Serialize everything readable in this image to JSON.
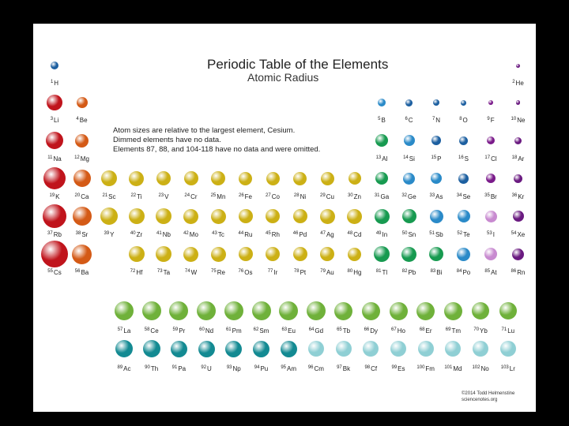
{
  "title": "Periodic Table of the Elements",
  "subtitle": "Atomic Radius",
  "notes": [
    "Atom sizes are relative to the largest element, Cesium.",
    "Dimmed elements have no data.",
    "Elements 87, 88, and 104-118 have no data and were omitted."
  ],
  "credit": [
    "©2014 Todd Helmenstine",
    "sciencenotes.org"
  ],
  "colors": {
    "alkali": "#c0141c",
    "alkaline": "#d45a16",
    "transition": "#ccb015",
    "post_transition": "#179a50",
    "metalloid": "#2a8ac8",
    "nonmetal": "#1c5fa0",
    "halogen": "#7a1a8a",
    "noble": "#6a1a80",
    "lanthanide": "#6fb13a",
    "actinide": "#138a92",
    "actinide_dim": "#8fcfd4",
    "halogen_dim": "#c88ad0"
  },
  "elements": [
    {
      "n": 1,
      "s": "H",
      "c": "nonmetal",
      "r": 5,
      "col": 1,
      "row": 1
    },
    {
      "n": 2,
      "s": "He",
      "c": "noble",
      "r": 2.5,
      "col": 18,
      "row": 1
    },
    {
      "n": 3,
      "s": "Li",
      "c": "alkali",
      "r": 10,
      "col": 1,
      "row": 2
    },
    {
      "n": 4,
      "s": "Be",
      "c": "alkaline",
      "r": 7,
      "col": 2,
      "row": 2
    },
    {
      "n": 5,
      "s": "B",
      "c": "metalloid",
      "r": 5,
      "col": 13,
      "row": 2
    },
    {
      "n": 6,
      "s": "C",
      "c": "nonmetal",
      "r": 4.5,
      "col": 14,
      "row": 2
    },
    {
      "n": 7,
      "s": "N",
      "c": "nonmetal",
      "r": 4,
      "col": 15,
      "row": 2
    },
    {
      "n": 8,
      "s": "O",
      "c": "nonmetal",
      "r": 3.5,
      "col": 16,
      "row": 2
    },
    {
      "n": 9,
      "s": "F",
      "c": "halogen",
      "r": 3,
      "col": 17,
      "row": 2
    },
    {
      "n": 10,
      "s": "Ne",
      "c": "noble",
      "r": 2.8,
      "col": 18,
      "row": 2
    },
    {
      "n": 11,
      "s": "Na",
      "c": "alkali",
      "r": 11,
      "col": 1,
      "row": 3
    },
    {
      "n": 12,
      "s": "Mg",
      "c": "alkaline",
      "r": 8.5,
      "col": 2,
      "row": 3
    },
    {
      "n": 13,
      "s": "Al",
      "c": "post_transition",
      "r": 8,
      "col": 13,
      "row": 3
    },
    {
      "n": 14,
      "s": "Si",
      "c": "metalloid",
      "r": 7,
      "col": 14,
      "row": 3
    },
    {
      "n": 15,
      "s": "P",
      "c": "nonmetal",
      "r": 6,
      "col": 15,
      "row": 3
    },
    {
      "n": 16,
      "s": "S",
      "c": "nonmetal",
      "r": 5.5,
      "col": 16,
      "row": 3
    },
    {
      "n": 17,
      "s": "Cl",
      "c": "halogen",
      "r": 5,
      "col": 17,
      "row": 3
    },
    {
      "n": 18,
      "s": "Ar",
      "c": "noble",
      "r": 4.5,
      "col": 18,
      "row": 3
    },
    {
      "n": 19,
      "s": "K",
      "c": "alkali",
      "r": 14,
      "col": 1,
      "row": 4
    },
    {
      "n": 20,
      "s": "Ca",
      "c": "alkaline",
      "r": 11,
      "col": 2,
      "row": 4
    },
    {
      "n": 21,
      "s": "Sc",
      "c": "transition",
      "r": 10,
      "col": 3,
      "row": 4
    },
    {
      "n": 22,
      "s": "Ti",
      "c": "transition",
      "r": 9.5,
      "col": 4,
      "row": 4
    },
    {
      "n": 23,
      "s": "V",
      "c": "transition",
      "r": 9,
      "col": 5,
      "row": 4
    },
    {
      "n": 24,
      "s": "Cr",
      "c": "transition",
      "r": 9,
      "col": 6,
      "row": 4
    },
    {
      "n": 25,
      "s": "Mn",
      "c": "transition",
      "r": 9,
      "col": 7,
      "row": 4
    },
    {
      "n": 26,
      "s": "Fe",
      "c": "transition",
      "r": 8.5,
      "col": 8,
      "row": 4
    },
    {
      "n": 27,
      "s": "Co",
      "c": "transition",
      "r": 8.5,
      "col": 9,
      "row": 4
    },
    {
      "n": 28,
      "s": "Ni",
      "c": "transition",
      "r": 8.5,
      "col": 10,
      "row": 4
    },
    {
      "n": 29,
      "s": "Cu",
      "c": "transition",
      "r": 8.5,
      "col": 11,
      "row": 4
    },
    {
      "n": 30,
      "s": "Zn",
      "c": "transition",
      "r": 8,
      "col": 12,
      "row": 4
    },
    {
      "n": 31,
      "s": "Ga",
      "c": "post_transition",
      "r": 8,
      "col": 13,
      "row": 4
    },
    {
      "n": 32,
      "s": "Ge",
      "c": "metalloid",
      "r": 7.5,
      "col": 14,
      "row": 4
    },
    {
      "n": 33,
      "s": "As",
      "c": "metalloid",
      "r": 7,
      "col": 15,
      "row": 4
    },
    {
      "n": 34,
      "s": "Se",
      "c": "nonmetal",
      "r": 6.5,
      "col": 16,
      "row": 4
    },
    {
      "n": 35,
      "s": "Br",
      "c": "halogen",
      "r": 6,
      "col": 17,
      "row": 4
    },
    {
      "n": 36,
      "s": "Kr",
      "c": "noble",
      "r": 5.5,
      "col": 18,
      "row": 4
    },
    {
      "n": 37,
      "s": "Rb",
      "c": "alkali",
      "r": 15,
      "col": 1,
      "row": 5
    },
    {
      "n": 38,
      "s": "Sr",
      "c": "alkaline",
      "r": 12,
      "col": 2,
      "row": 5
    },
    {
      "n": 39,
      "s": "Y",
      "c": "transition",
      "r": 11,
      "col": 3,
      "row": 5
    },
    {
      "n": 40,
      "s": "Zr",
      "c": "transition",
      "r": 10,
      "col": 4,
      "row": 5
    },
    {
      "n": 41,
      "s": "Nb",
      "c": "transition",
      "r": 10,
      "col": 5,
      "row": 5
    },
    {
      "n": 42,
      "s": "Mo",
      "c": "transition",
      "r": 9.5,
      "col": 6,
      "row": 5
    },
    {
      "n": 43,
      "s": "Tc",
      "c": "transition",
      "r": 9.5,
      "col": 7,
      "row": 5
    },
    {
      "n": 44,
      "s": "Ru",
      "c": "transition",
      "r": 9,
      "col": 8,
      "row": 5
    },
    {
      "n": 45,
      "s": "Rh",
      "c": "transition",
      "r": 9,
      "col": 9,
      "row": 5
    },
    {
      "n": 46,
      "s": "Pd",
      "c": "transition",
      "r": 9,
      "col": 10,
      "row": 5
    },
    {
      "n": 47,
      "s": "Ag",
      "c": "transition",
      "r": 9.5,
      "col": 11,
      "row": 5
    },
    {
      "n": 48,
      "s": "Cd",
      "c": "transition",
      "r": 9.5,
      "col": 12,
      "row": 5
    },
    {
      "n": 49,
      "s": "In",
      "c": "post_transition",
      "r": 9.5,
      "col": 13,
      "row": 5
    },
    {
      "n": 50,
      "s": "Sn",
      "c": "post_transition",
      "r": 9,
      "col": 14,
      "row": 5
    },
    {
      "n": 51,
      "s": "Sb",
      "c": "metalloid",
      "r": 8.5,
      "col": 15,
      "row": 5
    },
    {
      "n": 52,
      "s": "Te",
      "c": "metalloid",
      "r": 8,
      "col": 16,
      "row": 5
    },
    {
      "n": 53,
      "s": "I",
      "c": "halogen_dim",
      "r": 7.5,
      "col": 17,
      "row": 5
    },
    {
      "n": 54,
      "s": "Xe",
      "c": "noble",
      "r": 7,
      "col": 18,
      "row": 5
    },
    {
      "n": 55,
      "s": "Cs",
      "c": "alkali",
      "r": 17,
      "col": 1,
      "row": 6
    },
    {
      "n": 56,
      "s": "Ba",
      "c": "alkaline",
      "r": 12.5,
      "col": 2,
      "row": 6
    },
    {
      "n": 72,
      "s": "Hf",
      "c": "transition",
      "r": 10,
      "col": 4,
      "row": 6
    },
    {
      "n": 73,
      "s": "Ta",
      "c": "transition",
      "r": 10,
      "col": 5,
      "row": 6
    },
    {
      "n": 74,
      "s": "W",
      "c": "transition",
      "r": 9.5,
      "col": 6,
      "row": 6
    },
    {
      "n": 75,
      "s": "Re",
      "c": "transition",
      "r": 9.5,
      "col": 7,
      "row": 6
    },
    {
      "n": 76,
      "s": "Os",
      "c": "transition",
      "r": 9,
      "col": 8,
      "row": 6
    },
    {
      "n": 77,
      "s": "Ir",
      "c": "transition",
      "r": 9,
      "col": 9,
      "row": 6
    },
    {
      "n": 78,
      "s": "Pt",
      "c": "transition",
      "r": 9,
      "col": 10,
      "row": 6
    },
    {
      "n": 79,
      "s": "Au",
      "c": "transition",
      "r": 9,
      "col": 11,
      "row": 6
    },
    {
      "n": 80,
      "s": "Hg",
      "c": "transition",
      "r": 8.5,
      "col": 12,
      "row": 6
    },
    {
      "n": 81,
      "s": "Tl",
      "c": "post_transition",
      "r": 10,
      "col": 13,
      "row": 6
    },
    {
      "n": 82,
      "s": "Pb",
      "c": "post_transition",
      "r": 9.5,
      "col": 14,
      "row": 6
    },
    {
      "n": 83,
      "s": "Bi",
      "c": "post_transition",
      "r": 9,
      "col": 15,
      "row": 6
    },
    {
      "n": 84,
      "s": "Po",
      "c": "metalloid",
      "r": 8.5,
      "col": 16,
      "row": 6
    },
    {
      "n": 85,
      "s": "At",
      "c": "halogen_dim",
      "r": 8,
      "col": 17,
      "row": 6
    },
    {
      "n": 86,
      "s": "Rn",
      "c": "noble",
      "r": 7.5,
      "col": 18,
      "row": 6
    },
    {
      "n": 57,
      "s": "La",
      "c": "lanthanide",
      "r": 12,
      "col": 4,
      "row": 8
    },
    {
      "n": 58,
      "s": "Ce",
      "c": "lanthanide",
      "r": 12,
      "col": 5,
      "row": 8
    },
    {
      "n": 59,
      "s": "Pr",
      "c": "lanthanide",
      "r": 12,
      "col": 6,
      "row": 8
    },
    {
      "n": 60,
      "s": "Nd",
      "c": "lanthanide",
      "r": 12,
      "col": 7,
      "row": 8
    },
    {
      "n": 61,
      "s": "Pm",
      "c": "lanthanide",
      "r": 12,
      "col": 8,
      "row": 8
    },
    {
      "n": 62,
      "s": "Sm",
      "c": "lanthanide",
      "r": 12,
      "col": 9,
      "row": 8
    },
    {
      "n": 63,
      "s": "Eu",
      "c": "lanthanide",
      "r": 12,
      "col": 10,
      "row": 8
    },
    {
      "n": 64,
      "s": "Gd",
      "c": "lanthanide",
      "r": 12,
      "col": 11,
      "row": 8
    },
    {
      "n": 65,
      "s": "Tb",
      "c": "lanthanide",
      "r": 11.5,
      "col": 12,
      "row": 8
    },
    {
      "n": 66,
      "s": "Dy",
      "c": "lanthanide",
      "r": 11.5,
      "col": 13,
      "row": 8
    },
    {
      "n": 67,
      "s": "Ho",
      "c": "lanthanide",
      "r": 11.5,
      "col": 14,
      "row": 8
    },
    {
      "n": 68,
      "s": "Er",
      "c": "lanthanide",
      "r": 11.5,
      "col": 15,
      "row": 8
    },
    {
      "n": 69,
      "s": "Tm",
      "c": "lanthanide",
      "r": 11.5,
      "col": 16,
      "row": 8
    },
    {
      "n": 70,
      "s": "Yb",
      "c": "lanthanide",
      "r": 11,
      "col": 17,
      "row": 8
    },
    {
      "n": 71,
      "s": "Lu",
      "c": "lanthanide",
      "r": 11,
      "col": 18,
      "row": 8
    },
    {
      "n": 89,
      "s": "Ac",
      "c": "actinide",
      "r": 11,
      "col": 4,
      "row": 9
    },
    {
      "n": 90,
      "s": "Th",
      "c": "actinide",
      "r": 11,
      "col": 5,
      "row": 9
    },
    {
      "n": 91,
      "s": "Pa",
      "c": "actinide",
      "r": 10.5,
      "col": 6,
      "row": 9
    },
    {
      "n": 92,
      "s": "U",
      "c": "actinide",
      "r": 10.5,
      "col": 7,
      "row": 9
    },
    {
      "n": 93,
      "s": "Np",
      "c": "actinide",
      "r": 10.5,
      "col": 8,
      "row": 9
    },
    {
      "n": 94,
      "s": "Pu",
      "c": "actinide",
      "r": 10.5,
      "col": 9,
      "row": 9
    },
    {
      "n": 95,
      "s": "Am",
      "c": "actinide",
      "r": 10.5,
      "col": 10,
      "row": 9
    },
    {
      "n": 96,
      "s": "Cm",
      "c": "actinide_dim",
      "r": 10,
      "col": 11,
      "row": 9
    },
    {
      "n": 97,
      "s": "Bk",
      "c": "actinide_dim",
      "r": 10,
      "col": 12,
      "row": 9
    },
    {
      "n": 98,
      "s": "Cf",
      "c": "actinide_dim",
      "r": 10,
      "col": 13,
      "row": 9
    },
    {
      "n": 99,
      "s": "Es",
      "c": "actinide_dim",
      "r": 10,
      "col": 14,
      "row": 9
    },
    {
      "n": 100,
      "s": "Fm",
      "c": "actinide_dim",
      "r": 10,
      "col": 15,
      "row": 9
    },
    {
      "n": 101,
      "s": "Md",
      "c": "actinide_dim",
      "r": 10,
      "col": 16,
      "row": 9
    },
    {
      "n": 102,
      "s": "No",
      "c": "actinide_dim",
      "r": 10,
      "col": 17,
      "row": 9
    },
    {
      "n": 103,
      "s": "Lr",
      "c": "actinide_dim",
      "r": 10,
      "col": 18,
      "row": 9
    }
  ]
}
